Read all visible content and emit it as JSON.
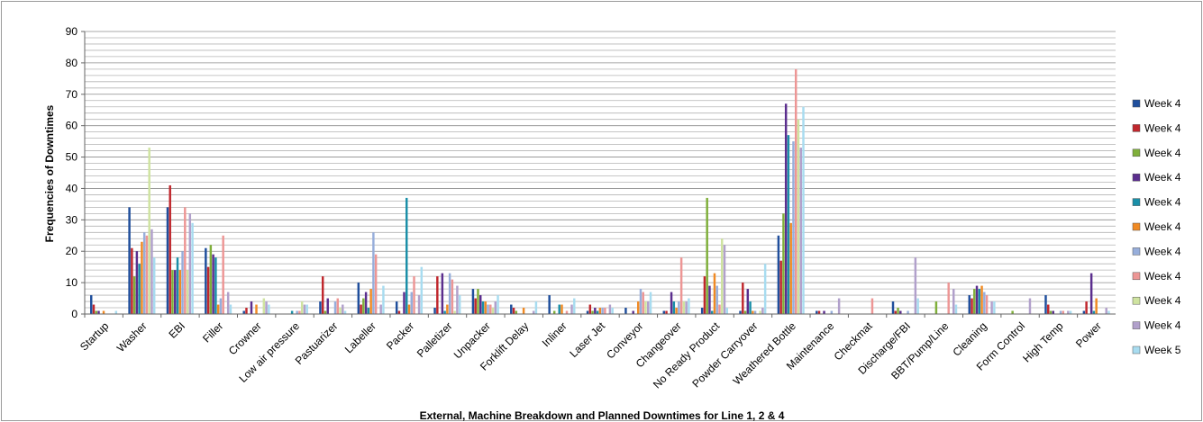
{
  "chart_data": {
    "type": "bar",
    "title": "External, Machine Breakdown and Planned Downtimes for Line 1, 2 & 4",
    "ylabel": "Frequencies of Downtimes",
    "xlabel": "",
    "ylim": [
      0,
      90
    ],
    "yticks": [
      0,
      10,
      20,
      30,
      40,
      50,
      60,
      70,
      80,
      90
    ],
    "grid": "horizontal",
    "legend_position": "right",
    "categories": [
      "Startup",
      "Washer",
      "EBI",
      "Filler",
      "Crowner",
      "Low air pressure",
      "Pastuarizer",
      "Labeller",
      "Packer",
      "Palletizer",
      "Unpacker",
      "Forklift Delay",
      "Inliner",
      "Laser Jet",
      "Conveyor",
      "Changeover",
      "No Ready Product",
      "Powder Carryover",
      "Weathered Bottle",
      "Maintenance",
      "Checkmat",
      "Discharge/FBI",
      "BBT/Pump/Line",
      "Cleaning",
      "Form Control",
      "High Temp",
      "Power"
    ],
    "series": [
      {
        "name": "Week 4",
        "color": "#1F4E9C",
        "values": [
          6,
          34,
          34,
          21,
          1,
          0,
          4,
          10,
          4,
          2,
          8,
          3,
          6,
          1,
          2,
          1,
          2,
          1,
          25,
          1,
          0,
          4,
          0,
          6,
          0,
          6,
          1
        ]
      },
      {
        "name": "Week 4",
        "color": "#C0272D",
        "values": [
          3,
          21,
          41,
          15,
          2,
          0,
          12,
          3,
          1,
          12,
          5,
          2,
          0,
          3,
          0,
          1,
          12,
          10,
          17,
          1,
          0,
          1,
          0,
          5,
          0,
          3,
          4
        ]
      },
      {
        "name": "Week 4",
        "color": "#7FAF3A",
        "values": [
          1,
          12,
          14,
          22,
          0,
          0,
          1,
          5,
          0,
          0,
          8,
          1,
          1,
          1,
          0,
          0,
          37,
          1,
          32,
          0,
          0,
          2,
          4,
          8,
          1,
          1,
          0
        ]
      },
      {
        "name": "Week 4",
        "color": "#5B2E8E",
        "values": [
          1,
          20,
          14,
          19,
          4,
          0,
          5,
          7,
          7,
          13,
          6,
          0,
          0,
          2,
          1,
          7,
          9,
          8,
          67,
          1,
          0,
          1,
          0,
          9,
          0,
          1,
          13
        ]
      },
      {
        "name": "Week 4",
        "color": "#1A8FA8",
        "values": [
          0,
          16,
          18,
          18,
          0,
          1,
          0,
          2,
          37,
          1,
          4,
          0,
          3,
          1,
          0,
          4,
          1,
          4,
          57,
          0,
          0,
          0,
          0,
          8,
          0,
          0,
          1
        ]
      },
      {
        "name": "Week 4",
        "color": "#F08A24",
        "values": [
          1,
          23,
          14,
          3,
          3,
          0,
          0,
          8,
          3,
          3,
          4,
          2,
          3,
          2,
          4,
          2,
          13,
          1,
          29,
          0,
          0,
          0,
          0,
          9,
          0,
          0,
          5
        ]
      },
      {
        "name": "Week 4",
        "color": "#97AEDB",
        "values": [
          0,
          26,
          20,
          5,
          0,
          1,
          4,
          26,
          7,
          13,
          3,
          0,
          0,
          2,
          8,
          4,
          9,
          1,
          55,
          1,
          0,
          1,
          0,
          7,
          0,
          1,
          0
        ]
      },
      {
        "name": "Week 4",
        "color": "#ED9695",
        "values": [
          0,
          25,
          34,
          25,
          0,
          1,
          5,
          19,
          12,
          11,
          3,
          0,
          1,
          2,
          7,
          18,
          3,
          0,
          78,
          0,
          5,
          0,
          10,
          6,
          0,
          1,
          0
        ]
      },
      {
        "name": "Week 4",
        "color": "#CFE3A0",
        "values": [
          0,
          53,
          14,
          0,
          5,
          4,
          2,
          0,
          0,
          1,
          2,
          0,
          0,
          0,
          4,
          4,
          24,
          1,
          62,
          0,
          0,
          0,
          0,
          0,
          0,
          0,
          0
        ]
      },
      {
        "name": "Week 4",
        "color": "#B1A0CB",
        "values": [
          0,
          27,
          32,
          7,
          4,
          3,
          3,
          3,
          6,
          9,
          4,
          1,
          3,
          3,
          4,
          4,
          22,
          2,
          53,
          5,
          0,
          18,
          8,
          4,
          5,
          1,
          2
        ]
      },
      {
        "name": "Week 5",
        "color": "#A8DCF0",
        "values": [
          1,
          18,
          29,
          3,
          3,
          3,
          1,
          9,
          15,
          6,
          6,
          4,
          5,
          2,
          7,
          5,
          2,
          16,
          66,
          0,
          0,
          5,
          3,
          4,
          0,
          1,
          1
        ]
      }
    ]
  }
}
